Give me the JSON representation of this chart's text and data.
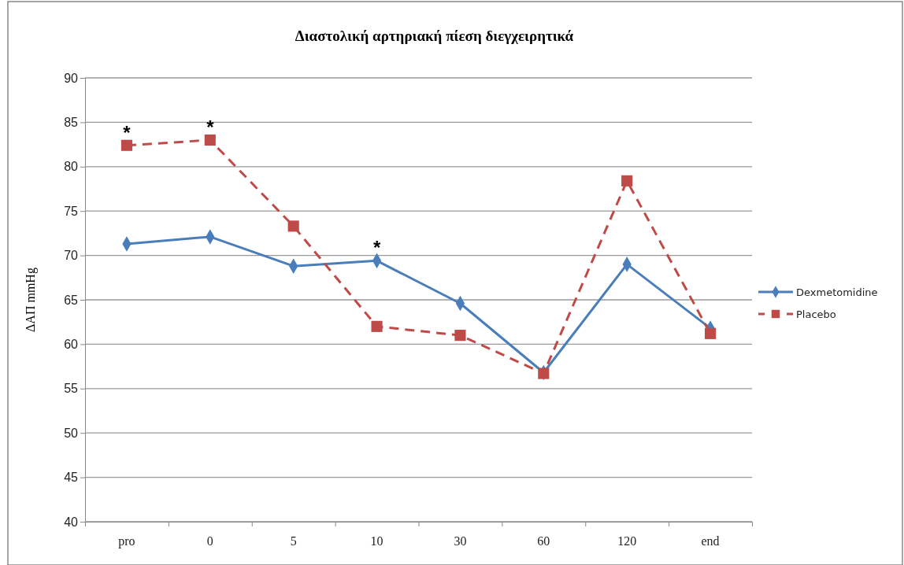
{
  "chart_data": {
    "type": "line",
    "title": "Διαστολική αρτηριακή πίεση διεγχειρητικά",
    "ylabel": "ΔΑΠ mmHg",
    "categories": [
      "pro",
      "0",
      "5",
      "10",
      "30",
      "60",
      "120",
      "end"
    ],
    "series": [
      {
        "name": "Dexmetomidine",
        "color": "#4a7ebb",
        "marker": "diamond",
        "line_style": "solid",
        "values": [
          71.3,
          72.1,
          68.8,
          69.4,
          64.6,
          56.8,
          69.0,
          61.8
        ]
      },
      {
        "name": "Placebo",
        "color": "#be4b48",
        "marker": "square",
        "line_style": "dashed",
        "values": [
          82.4,
          83.0,
          73.3,
          62.0,
          61.0,
          56.7,
          78.4,
          61.2
        ]
      }
    ],
    "ylim": [
      40,
      90
    ],
    "yticks": [
      40,
      45,
      50,
      55,
      60,
      65,
      70,
      75,
      80,
      85,
      90
    ],
    "grid": "y",
    "legend": "right",
    "annotations": [
      {
        "text": "*",
        "x": "pro",
        "y": 82.4
      },
      {
        "text": "*",
        "x": "0",
        "y": 83.0
      },
      {
        "text": "*",
        "x": "10",
        "y": 69.4
      }
    ]
  }
}
